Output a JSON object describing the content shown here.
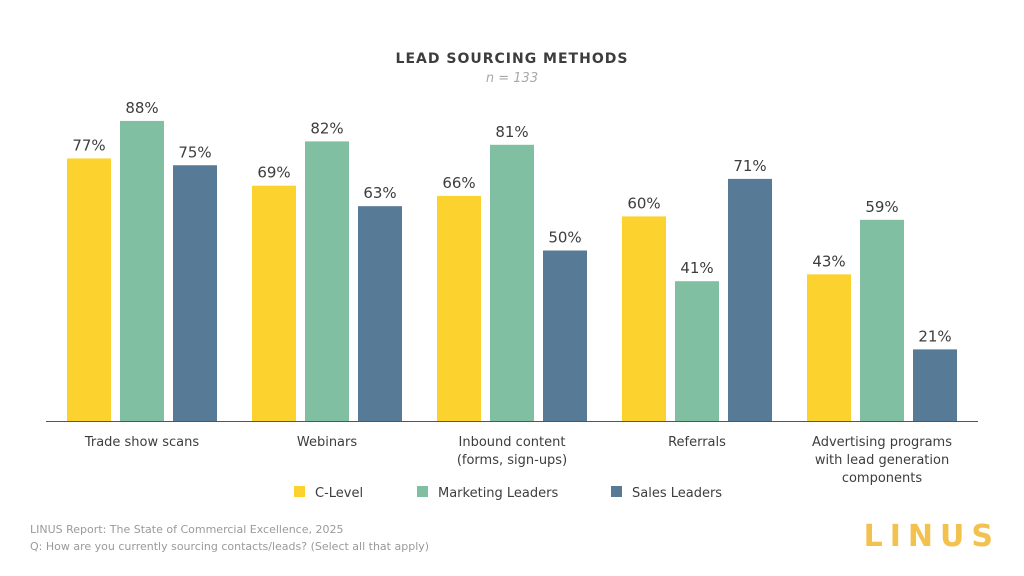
{
  "chart_data": {
    "type": "bar",
    "title": "LEAD SOURCING METHODS",
    "subtitle": "n = 133",
    "categories": [
      [
        "Trade show scans"
      ],
      [
        "Webinars"
      ],
      [
        "Inbound content",
        "(forms, sign-ups)"
      ],
      [
        "Referrals"
      ],
      [
        "Advertising programs",
        "with lead generation",
        "components"
      ]
    ],
    "series": [
      {
        "name": "C-Level",
        "color": "#fcd22e",
        "values": [
          77,
          69,
          66,
          60,
          43
        ]
      },
      {
        "name": "Marketing Leaders",
        "color": "#80bfa2",
        "values": [
          88,
          82,
          81,
          41,
          59
        ]
      },
      {
        "name": "Sales Leaders",
        "color": "#577a96",
        "values": [
          75,
          63,
          50,
          71,
          21
        ]
      }
    ],
    "value_suffix": "%",
    "ylim": [
      0,
      100
    ],
    "legend": "bottom-center",
    "grid": false
  },
  "footer": {
    "source": "LINUS Report: The State of Commercial Excellence, 2025",
    "question": "Q:  How are you currently sourcing contacts/leads? (Select all that apply)"
  },
  "logo": "LINUS"
}
